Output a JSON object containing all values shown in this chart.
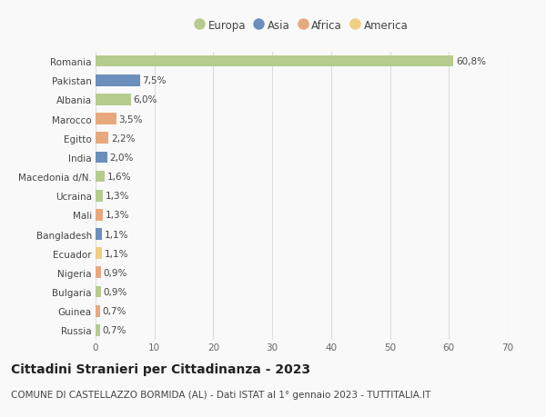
{
  "countries": [
    "Romania",
    "Pakistan",
    "Albania",
    "Marocco",
    "Egitto",
    "India",
    "Macedonia d/N.",
    "Ucraina",
    "Mali",
    "Bangladesh",
    "Ecuador",
    "Nigeria",
    "Bulgaria",
    "Guinea",
    "Russia"
  ],
  "values": [
    60.8,
    7.5,
    6.0,
    3.5,
    2.2,
    2.0,
    1.6,
    1.3,
    1.3,
    1.1,
    1.1,
    0.9,
    0.9,
    0.7,
    0.7
  ],
  "labels": [
    "60,8%",
    "7,5%",
    "6,0%",
    "3,5%",
    "2,2%",
    "2,0%",
    "1,6%",
    "1,3%",
    "1,3%",
    "1,1%",
    "1,1%",
    "0,9%",
    "0,9%",
    "0,7%",
    "0,7%"
  ],
  "continents": [
    "Europa",
    "Asia",
    "Europa",
    "Africa",
    "Africa",
    "Asia",
    "Europa",
    "Europa",
    "Africa",
    "Asia",
    "America",
    "Africa",
    "Europa",
    "Africa",
    "Europa"
  ],
  "continent_colors": {
    "Europa": "#b5cc8e",
    "Asia": "#6b8fbd",
    "Africa": "#e8a87c",
    "America": "#f0d080"
  },
  "xlim": [
    0,
    70
  ],
  "xticks": [
    0,
    10,
    20,
    30,
    40,
    50,
    60,
    70
  ],
  "title": "Cittadini Stranieri per Cittadinanza - 2023",
  "subtitle": "COMUNE DI CASTELLAZZO BORMIDA (AL) - Dati ISTAT al 1° gennaio 2023 - TUTTITALIA.IT",
  "background_color": "#f9f9f9",
  "grid_color": "#dddddd",
  "title_fontsize": 10,
  "subtitle_fontsize": 7.5,
  "label_fontsize": 7.5,
  "tick_fontsize": 7.5,
  "legend_fontsize": 8.5
}
